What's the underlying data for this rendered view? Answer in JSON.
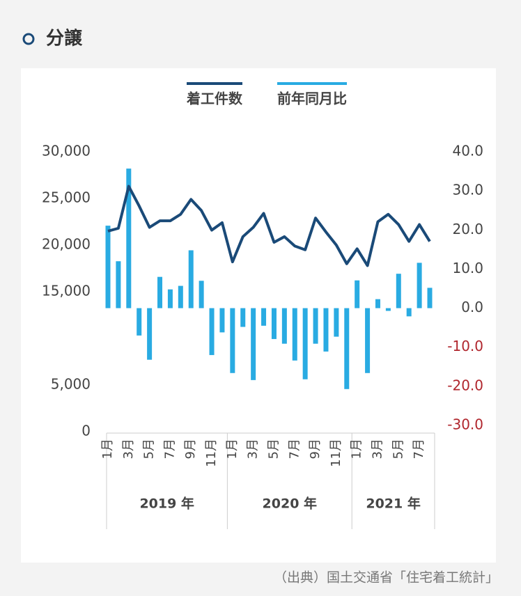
{
  "header": {
    "title": "分譲"
  },
  "chart_data": {
    "type": "bar-line",
    "categories": [
      "1月",
      null,
      "3月",
      null,
      "5月",
      null,
      "7月",
      null,
      "9月",
      null,
      "11月",
      null,
      "1月",
      null,
      "3月",
      null,
      "5月",
      null,
      "7月",
      null,
      "9月",
      null,
      "11月",
      null,
      "1月",
      null,
      "3月",
      null,
      "5月",
      null,
      "7月",
      null
    ],
    "groups": [
      {
        "label": "2019 年",
        "count": 12
      },
      {
        "label": "2020 年",
        "count": 12
      },
      {
        "label": "2021 年",
        "count": 8
      }
    ],
    "series": [
      {
        "name": "着工件数",
        "color": "#1a4a78",
        "kind": "line",
        "axis": "y",
        "values": [
          21500,
          21800,
          26300,
          24200,
          21900,
          22600,
          22600,
          23300,
          24900,
          23700,
          21600,
          22400,
          18200,
          20900,
          21900,
          23400,
          20300,
          20900,
          19900,
          19500,
          22900,
          21400,
          20000,
          18000,
          19600,
          17800,
          22500,
          23300,
          22200,
          20400,
          22200,
          20400
        ]
      },
      {
        "name": "前年同月比",
        "color": "#29abe2",
        "kind": "bar",
        "axis": "y2",
        "values": [
          21.1,
          12,
          35.7,
          -7,
          -13.2,
          8,
          4.8,
          5.7,
          14.8,
          7,
          -12,
          -6.2,
          -16.6,
          -4.8,
          -18.4,
          -4.5,
          -7.9,
          -9.1,
          -13.4,
          -18.2,
          -9.1,
          -11.1,
          -7.3,
          -20.7,
          7.1,
          -16.6,
          2.3,
          -0.7,
          8.8,
          -2.1,
          11.6,
          5.2
        ]
      }
    ],
    "ylim": [
      0,
      30000
    ],
    "yticks": [
      {
        "value": 30000,
        "label": "30,000"
      },
      {
        "value": 25000,
        "label": "25,000"
      },
      {
        "value": 20000,
        "label": "20,000"
      },
      {
        "value": 15000,
        "label": "15,000"
      },
      {
        "value": 5000,
        "label": "5,000"
      },
      0
    ],
    "y2lim": [
      -30,
      40
    ],
    "y2ticks": [
      {
        "value": 40,
        "label": "40.0"
      },
      {
        "value": 30,
        "label": "30.0"
      },
      {
        "value": 20,
        "label": "20.0"
      },
      {
        "value": 10,
        "label": "10.0"
      },
      {
        "value": 0,
        "label": "0.0"
      },
      {
        "value": -10,
        "label": "-10.0"
      },
      {
        "value": -20,
        "label": "-20.0"
      },
      {
        "value": -30,
        "label": "-30.0"
      }
    ],
    "y2_negative_color": "#b0262d",
    "legend": "top"
  },
  "source": "（出典）国土交通省「住宅着工統計」"
}
